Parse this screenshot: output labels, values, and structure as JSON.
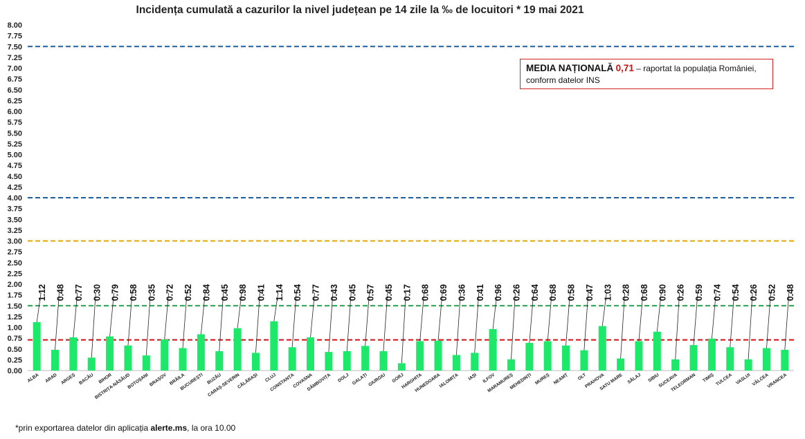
{
  "chart_data": {
    "type": "bar",
    "title": "Incidența cumulată a cazurilor la nivel județean pe 14 zile la ‰ de locuitori *  19 mai 2021",
    "xlabel": "",
    "ylabel": "",
    "ylim": [
      0,
      8
    ],
    "yticks": [
      "0.00",
      "0.25",
      "0.50",
      "0.75",
      "1.00",
      "1.25",
      "1.50",
      "1.75",
      "2.00",
      "2.25",
      "2.50",
      "2.75",
      "3.00",
      "3.25",
      "3.50",
      "3.75",
      "4.00",
      "4.25",
      "4.50",
      "4.75",
      "5.00",
      "5.25",
      "5.50",
      "5.75",
      "6.00",
      "6.25",
      "6.50",
      "6.75",
      "7.00",
      "7.25",
      "7.50",
      "7.75",
      "8.00"
    ],
    "categories": [
      "ALBA",
      "ARAD",
      "ARGEȘ",
      "BACĂU",
      "BIHOR",
      "BISTRIȚA-NĂSĂUD",
      "BOTOȘANI",
      "BRAȘOV",
      "BRĂILA",
      "BUCUREȘTI",
      "BUZĂU",
      "CARAȘ-SEVERIN",
      "CĂLĂRAȘI",
      "CLUJ",
      "CONSTANȚA",
      "COVASNA",
      "DÂMBOVIȚA",
      "DOLJ",
      "GALAȚI",
      "GIURGIU",
      "GORJ",
      "HARGHITA",
      "HUNEDOARA",
      "IALOMIȚA",
      "IAȘI",
      "ILFOV",
      "MARAMUREȘ",
      "MEHEDINȚI",
      "MUREȘ",
      "NEAMȚ",
      "OLT",
      "PRAHOVA",
      "SATU MARE",
      "SĂLAJ",
      "SIBIU",
      "SUCEAVA",
      "TELEORMAN",
      "TIMIȘ",
      "TULCEA",
      "VASLUI",
      "VÂLCEA",
      "VRANCEA"
    ],
    "values": [
      1.12,
      0.48,
      0.77,
      0.3,
      0.79,
      0.58,
      0.35,
      0.72,
      0.52,
      0.84,
      0.45,
      0.98,
      0.41,
      1.14,
      0.54,
      0.77,
      0.43,
      0.45,
      0.57,
      0.45,
      0.17,
      0.68,
      0.69,
      0.36,
      0.41,
      0.96,
      0.26,
      0.64,
      0.68,
      0.58,
      0.47,
      1.03,
      0.28,
      0.68,
      0.9,
      0.26,
      0.59,
      0.74,
      0.54,
      0.26,
      0.52,
      0.48
    ],
    "value_labels": [
      "1.12",
      "0.48",
      "0.77",
      "0.30",
      "0.79",
      "0.58",
      "0.35",
      "0.72",
      "0.52",
      "0.84",
      "0.45",
      "0.98",
      "0.41",
      "1.14",
      "0.54",
      "0.77",
      "0.43",
      "0.45",
      "0.57",
      "0.45",
      "0.17",
      "0.68",
      "0.69",
      "0.36",
      "0.41",
      "0.96",
      "0.26",
      "0.64",
      "0.68",
      "0.58",
      "0.47",
      "1.03",
      "0.28",
      "0.68",
      "0.90",
      "0.26",
      "0.59",
      "0.74",
      "0.54",
      "0.26",
      "0.52",
      "0.48"
    ],
    "reference_lines": [
      {
        "value": 7.5,
        "color": "#1f5e9e"
      },
      {
        "value": 4.0,
        "color": "#1f5e9e"
      },
      {
        "value": 3.0,
        "color": "#e0a800"
      },
      {
        "value": 1.5,
        "color": "#22a04a"
      },
      {
        "value": 0.71,
        "color": "#d01010"
      }
    ],
    "bar_color": "#1de86a",
    "grid": false,
    "legend": "none"
  },
  "annotation": {
    "label": "MEDIA NAȚIONALĂ",
    "value": "0,71",
    "text1": " – raportat la populația României,",
    "text2": "conform datelor INS"
  },
  "footnote": {
    "prefix": "*prin exportarea datelor din aplicația ",
    "bold": "alerte.ms",
    "suffix": ", la ora 10.00"
  }
}
